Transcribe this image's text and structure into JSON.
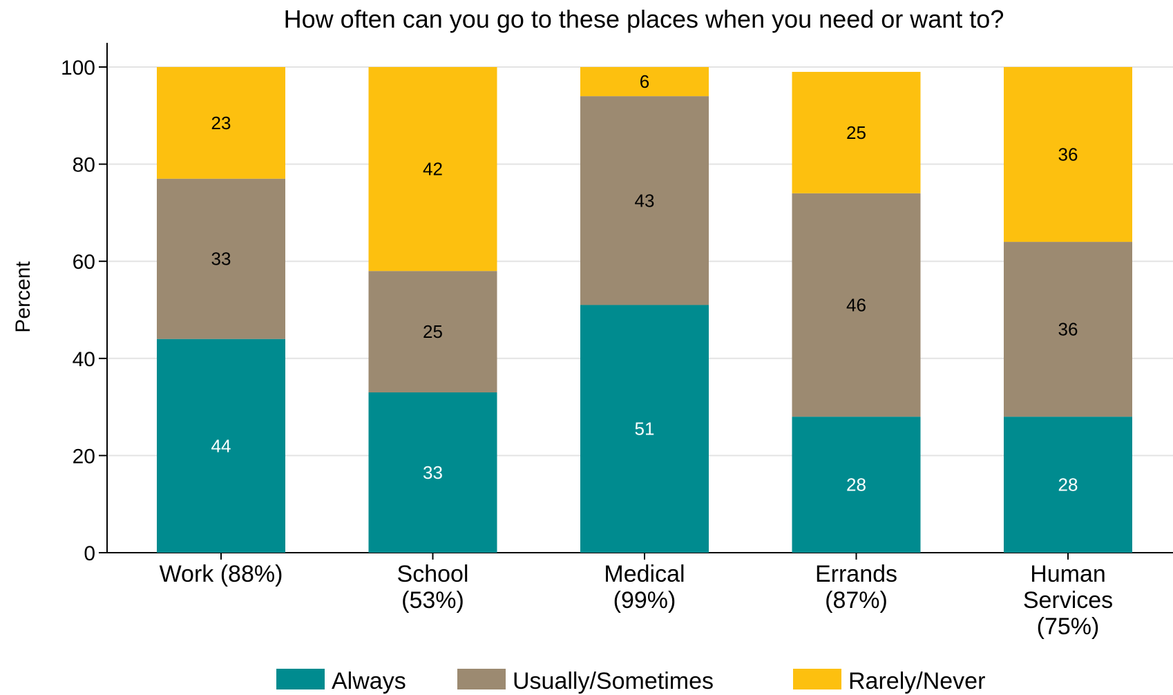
{
  "chart_data": {
    "type": "bar",
    "stacked": true,
    "title": "How often can you go to these places when you need or want to?",
    "xlabel": "",
    "ylabel": "Percent",
    "ylim": [
      0,
      100
    ],
    "yticks": [
      0,
      20,
      40,
      60,
      80,
      100
    ],
    "grid": true,
    "legend_position": "bottom",
    "categories": [
      [
        "Work (88%)"
      ],
      [
        "School",
        "(53%)"
      ],
      [
        "Medical",
        "(99%)"
      ],
      [
        "Errands",
        "(87%)"
      ],
      [
        "Human",
        "Services",
        "(75%)"
      ]
    ],
    "series": [
      {
        "name": "Always",
        "color": "#008b8f",
        "label_color": "#ffffff",
        "values": [
          44,
          33,
          51,
          28,
          28
        ]
      },
      {
        "name": "Usually/Sometimes",
        "color": "#9c8a71",
        "label_color": "#000000",
        "values": [
          33,
          25,
          43,
          46,
          36
        ]
      },
      {
        "name": "Rarely/Never",
        "color": "#fdc00f",
        "label_color": "#000000",
        "values": [
          23,
          42,
          6,
          25,
          36
        ]
      }
    ]
  }
}
